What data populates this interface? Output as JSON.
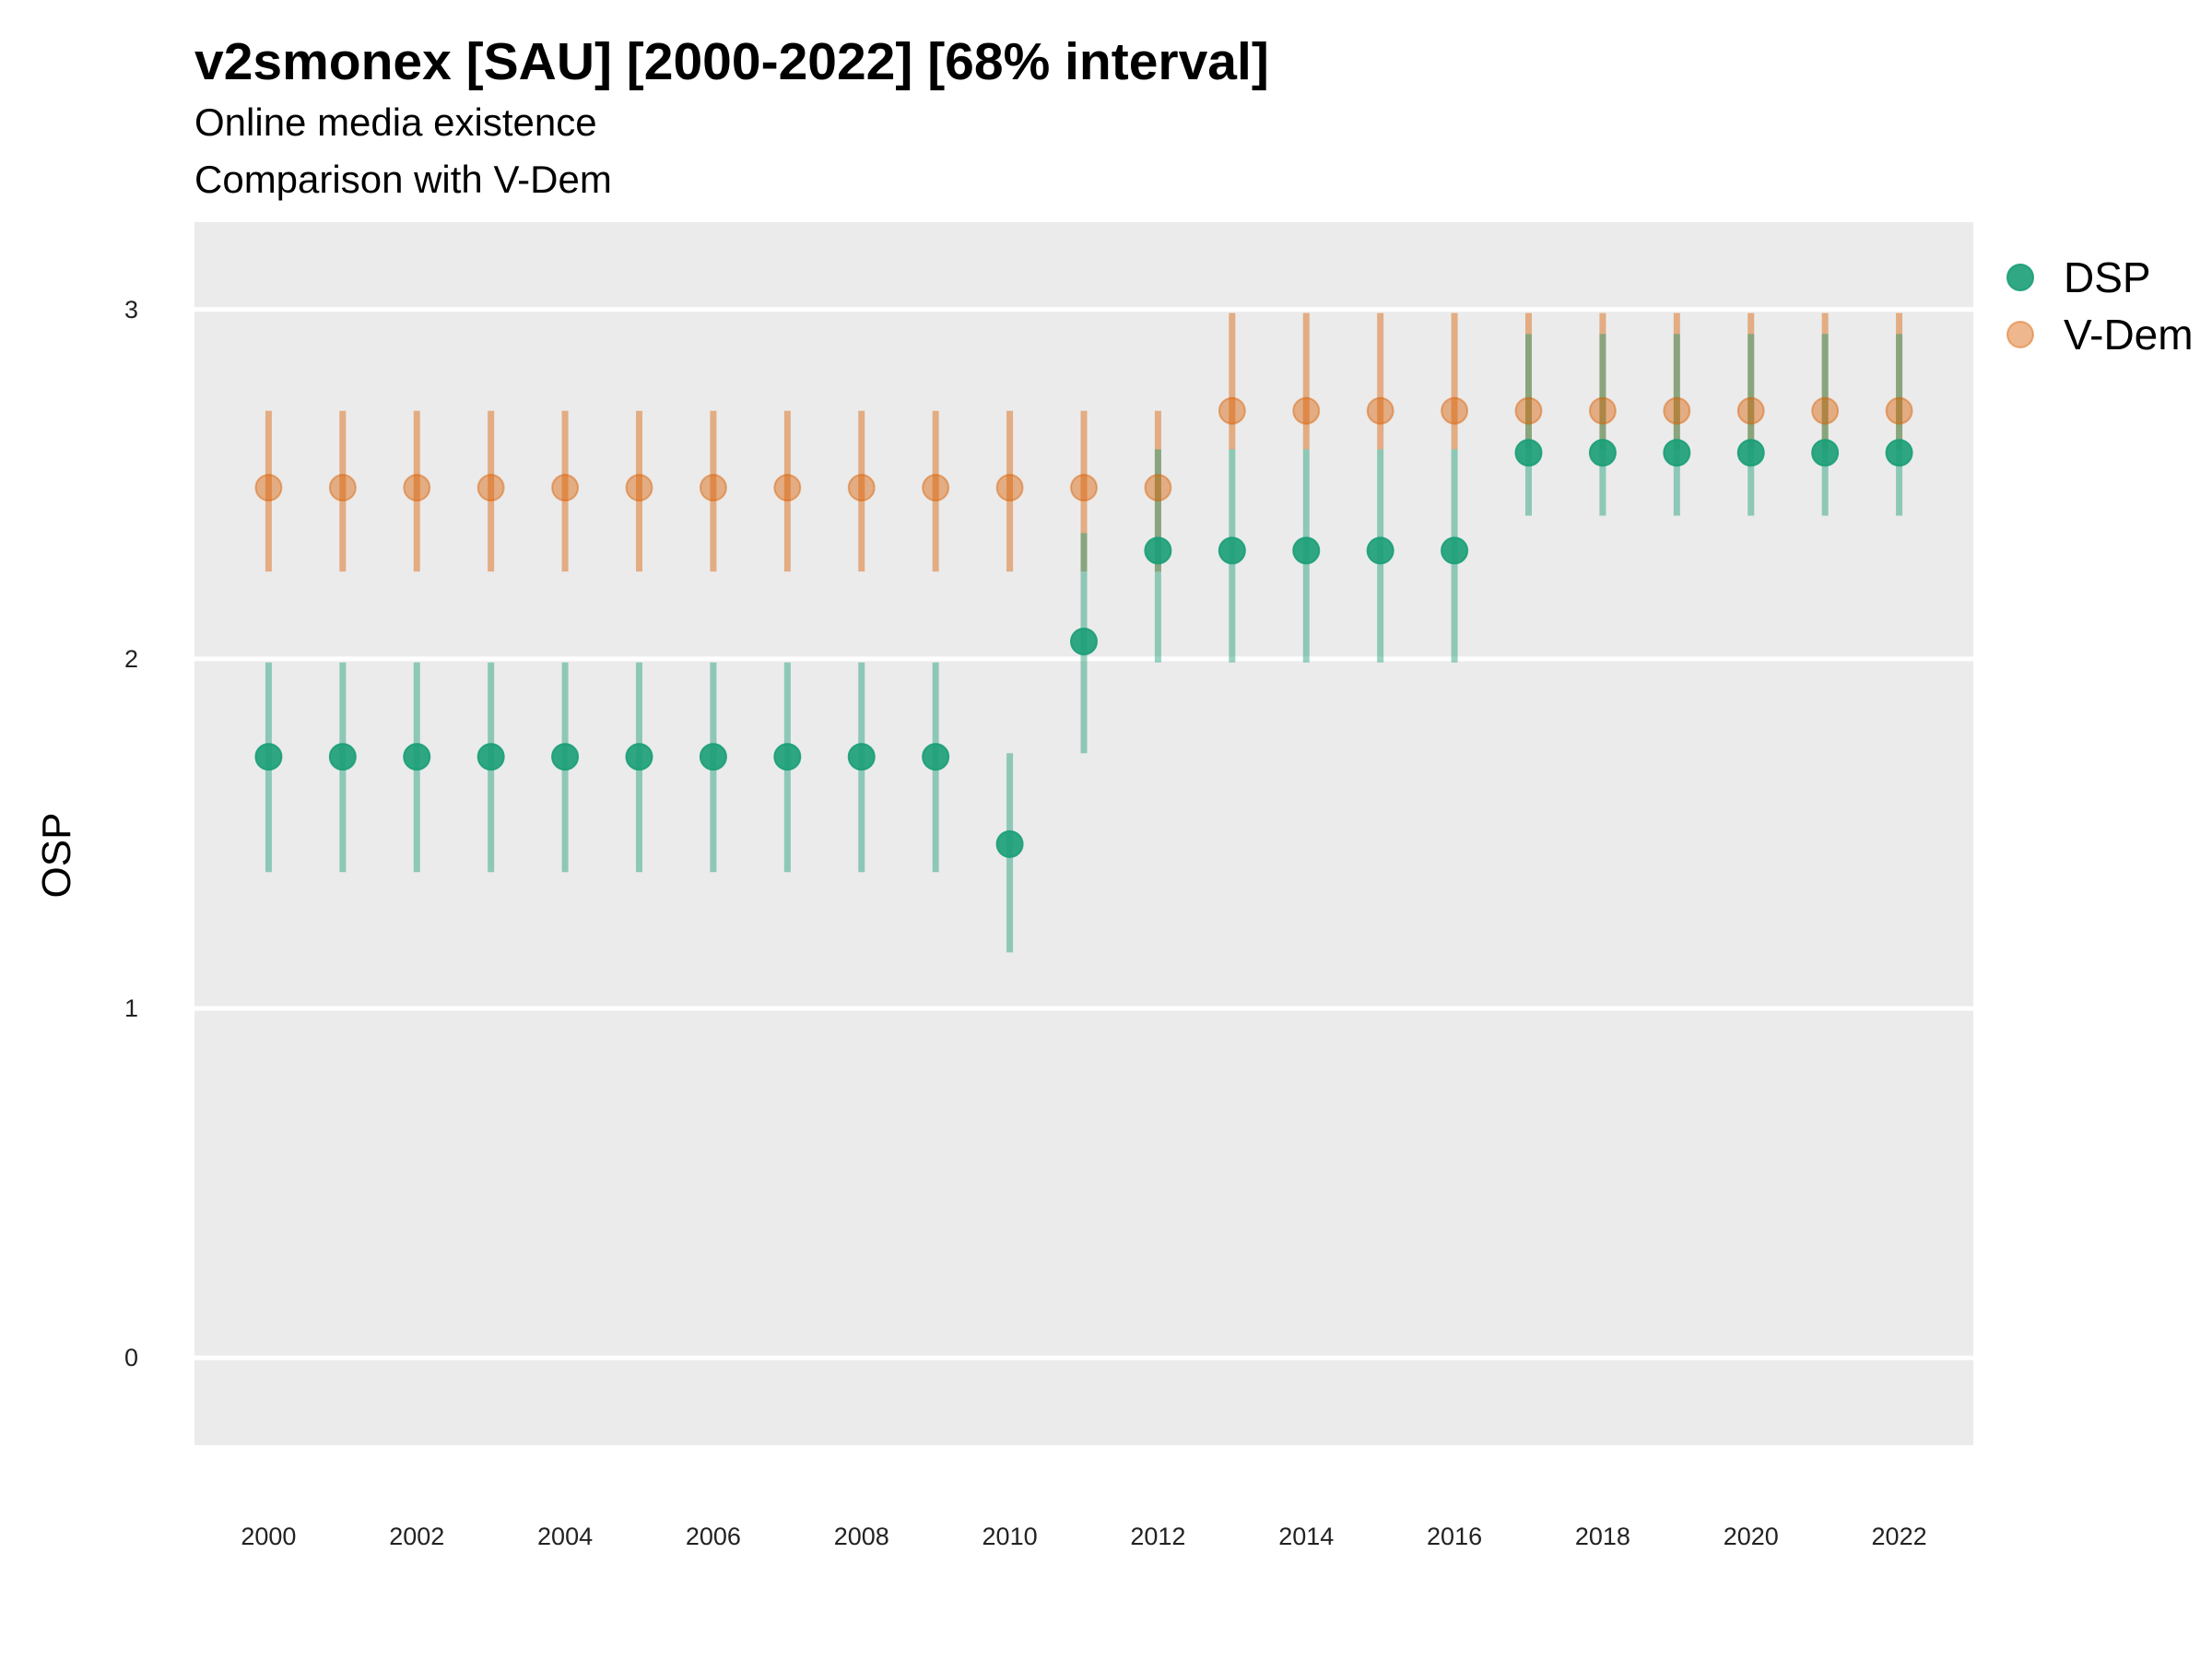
{
  "chart_data": {
    "type": "scatter",
    "title": "v2smonex [SAU] [2000-2022] [68% interval]",
    "subtitle_lines": [
      "Online media existence",
      "Comparison with V-Dem"
    ],
    "ylabel": "OSP",
    "xlabel": "",
    "x": [
      2000,
      2001,
      2002,
      2003,
      2004,
      2005,
      2006,
      2007,
      2008,
      2009,
      2010,
      2011,
      2012,
      2013,
      2014,
      2015,
      2016,
      2017,
      2018,
      2019,
      2020,
      2021,
      2022
    ],
    "x_ticks": [
      "2000",
      "2002",
      "2004",
      "2006",
      "2008",
      "2010",
      "2012",
      "2014",
      "2016",
      "2018",
      "2020",
      "2022"
    ],
    "y_ticks": [
      "0",
      "1",
      "2",
      "3"
    ],
    "xlim": [
      1999,
      2023
    ],
    "ylim": [
      -0.25,
      3.25
    ],
    "grid": true,
    "legend_position": "right",
    "series": [
      {
        "name": "DSP",
        "color": "#1b9e77",
        "values": [
          1.72,
          1.72,
          1.72,
          1.72,
          1.72,
          1.72,
          1.72,
          1.72,
          1.72,
          1.72,
          1.47,
          2.05,
          2.31,
          2.31,
          2.31,
          2.31,
          2.31,
          2.59,
          2.59,
          2.59,
          2.59,
          2.59,
          2.59
        ],
        "lower": [
          1.39,
          1.39,
          1.39,
          1.39,
          1.39,
          1.39,
          1.39,
          1.39,
          1.39,
          1.39,
          1.16,
          1.73,
          1.99,
          1.99,
          1.99,
          1.99,
          1.99,
          2.41,
          2.41,
          2.41,
          2.41,
          2.41,
          2.41
        ],
        "upper": [
          1.99,
          1.99,
          1.99,
          1.99,
          1.99,
          1.99,
          1.99,
          1.99,
          1.99,
          1.99,
          1.73,
          2.36,
          2.6,
          2.6,
          2.6,
          2.6,
          2.6,
          2.93,
          2.93,
          2.93,
          2.93,
          2.93,
          2.93
        ]
      },
      {
        "name": "V-Dem",
        "color": "#d95f02",
        "values": [
          2.49,
          2.49,
          2.49,
          2.49,
          2.49,
          2.49,
          2.49,
          2.49,
          2.49,
          2.49,
          2.49,
          2.49,
          2.49,
          2.71,
          2.71,
          2.71,
          2.71,
          2.71,
          2.71,
          2.71,
          2.71,
          2.71,
          2.71
        ],
        "lower": [
          2.25,
          2.25,
          2.25,
          2.25,
          2.25,
          2.25,
          2.25,
          2.25,
          2.25,
          2.25,
          2.25,
          2.25,
          2.25,
          2.6,
          2.6,
          2.6,
          2.6,
          2.6,
          2.6,
          2.6,
          2.6,
          2.6,
          2.6
        ],
        "upper": [
          2.71,
          2.71,
          2.71,
          2.71,
          2.71,
          2.71,
          2.71,
          2.71,
          2.71,
          2.71,
          2.71,
          2.71,
          2.71,
          2.99,
          2.99,
          2.99,
          2.99,
          2.99,
          2.99,
          2.99,
          2.99,
          2.99,
          2.99
        ]
      }
    ]
  }
}
